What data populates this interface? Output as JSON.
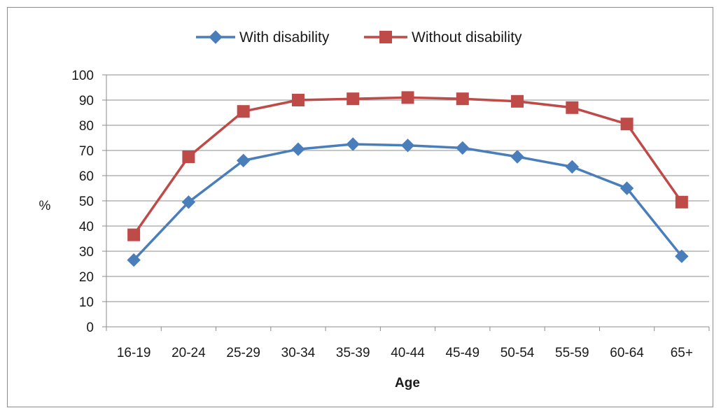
{
  "chart_data": {
    "type": "line",
    "categories": [
      "16-19",
      "20-24",
      "25-29",
      "30-34",
      "35-39",
      "40-44",
      "45-49",
      "50-54",
      "55-59",
      "60-64",
      "65+"
    ],
    "series": [
      {
        "name": "With disability",
        "color": "#4a7ebb",
        "marker": "diamond",
        "values": [
          26.5,
          49.5,
          66,
          70.5,
          72.5,
          72,
          71,
          67.5,
          63.5,
          55,
          28
        ]
      },
      {
        "name": "Without disability",
        "color": "#be4b48",
        "marker": "square",
        "values": [
          36.5,
          67.5,
          85.5,
          90,
          90.5,
          91,
          90.5,
          89.5,
          87,
          80.5,
          49.5
        ]
      }
    ],
    "xlabel": "Age",
    "ylabel": "%",
    "ylim": [
      0,
      100
    ],
    "yticks": [
      0,
      10,
      20,
      30,
      40,
      50,
      60,
      70,
      80,
      90,
      100
    ],
    "grid": true,
    "legend_position": "top-center"
  }
}
